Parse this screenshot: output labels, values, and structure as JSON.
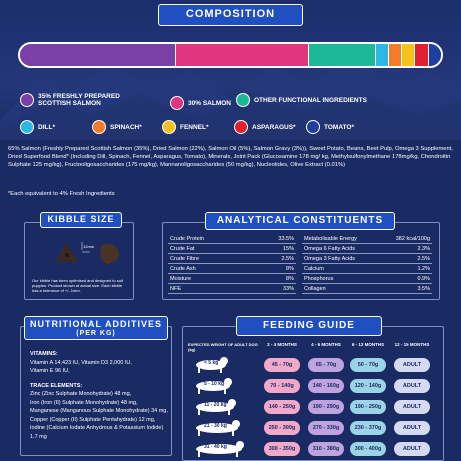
{
  "composition": {
    "title": "COMPOSITION",
    "bar": [
      {
        "color": "#7b3fa8",
        "share": 35
      },
      {
        "color": "#e0357f",
        "share": 30
      },
      {
        "color": "#1db89a",
        "share": 15
      },
      {
        "color": "#2bb8e6",
        "share": 3
      },
      {
        "color": "#f27c27",
        "share": 3
      },
      {
        "color": "#f5c21b",
        "share": 3
      },
      {
        "color": "#e02230",
        "share": 3
      },
      {
        "color": "#1f3fa0",
        "share": 3
      }
    ],
    "legend": [
      {
        "label": "35% FRESHLY PREPARED SCOTTISH SALMON",
        "color": "#7b3fa8"
      },
      {
        "label": "30% SALMON",
        "color": "#e0357f"
      },
      {
        "label": "OTHER FUNCTIONAL INGREDIENTS",
        "color": "#1db89a"
      },
      {
        "label": "DILL*",
        "color": "#2bb8e6"
      },
      {
        "label": "SPINACH*",
        "color": "#f27c27"
      },
      {
        "label": "FENNEL*",
        "color": "#f5c21b"
      },
      {
        "label": "ASPARAGUS*",
        "color": "#e02230"
      },
      {
        "label": "TOMATO*",
        "color": "#1f3fa0"
      }
    ],
    "ingredients": "65% Salmon (Freshly Prepared Scottish Salmon (35%), Dried Salmon (22%), Salmon Oil (5%), Salmon Gravy (3%)), Sweet Potato, Beans, Beet Pulp, Omega 3 Supplement, Dried Superfood Blend* (Including Dill, Spinach, Fennel, Asparagus, Tomato), Minerals, Joint Pack (Glucosamine 178 mg/ kg, Methylsulfonylmethane 178mg/kg, Chondroitin Sulphate 125 mg/kg), Fructooligosaccharides (175 mg/kg), Mannanoligosaccharides (50 mg/kg), Nucleotides, Olive Extract (0.01%)",
    "footnote": "*Each equivalent to 4% Fresh Ingredients"
  },
  "kibble": {
    "title": "KIBBLE SIZE",
    "note": "Our kibble has been optimised and designed to suit puppies. Product shown at actual size. Each kibble has a tolerance of +/- 1mm."
  },
  "analytical": {
    "title": "ANALYTICAL CONSTITUENTS",
    "left": [
      {
        "k": "Crude Protein",
        "v": "33.5%"
      },
      {
        "k": "Crude Fat",
        "v": "15%"
      },
      {
        "k": "Crude Fibre",
        "v": "2.5%"
      },
      {
        "k": "Crude Ash",
        "v": "8%"
      },
      {
        "k": "Moisture",
        "v": "8%"
      },
      {
        "k": "NFE",
        "v": "33%"
      }
    ],
    "right": [
      {
        "k": "Metabolisable Energy",
        "v": "382 kcal/100g"
      },
      {
        "k": "Omega 6 Fatty Acids",
        "v": "2.3%"
      },
      {
        "k": "Omega 3 Fatty Acids",
        "v": "2.5%"
      },
      {
        "k": "Calcium",
        "v": "1.2%"
      },
      {
        "k": "Phosphorus",
        "v": "0.9%"
      },
      {
        "k": "Collagen",
        "v": "3.5%"
      }
    ]
  },
  "additives": {
    "title": "NUTRITIONAL ADDITIVES",
    "subtitle": "(PER KG)",
    "vitamins_head": "VITAMINS:",
    "vitamins": [
      "Vitamin A 14,423 IU, Vitamin D3 2,000 IU,",
      "Vitamin E 96 IU,"
    ],
    "trace_head": "TRACE ELEMENTS:",
    "trace": [
      "Zinc (Zinc Sulphate Monohydrate) 48 mg,",
      "Iron (Iron (II) Sulphate Monohydrate) 48 mg,",
      "Manganese (Manganous Sulphate Monohydrate) 34 mg,",
      "Copper (Copper (II) Sulphate Pentahydrate) 12 mg,",
      "Iodine (Calcium Iodate Anhydrous & Potassium Iodide) 1.7 mg"
    ]
  },
  "feeding": {
    "title": "FEEDING GUIDE",
    "weight_head": "EXPECTED WEIGHT OF ADULT DOG (kg)",
    "columns": [
      "2 - 4 MONTHS",
      "4 - 6 MONTHS",
      "6 - 12 MONTHS",
      "12 - 15 MONTHS"
    ],
    "rows": [
      {
        "weight": "< 5 kg",
        "vals": [
          "45 - 70g",
          "65 - 70g",
          "50 - 70g",
          "ADULT"
        ]
      },
      {
        "weight": "5 - 10 kg",
        "vals": [
          "70 - 140g",
          "140 - 160g",
          "120 - 140g",
          "ADULT"
        ]
      },
      {
        "weight": "11 - 20 kg",
        "vals": [
          "140 - 250g",
          "190 - 290g",
          "190 - 250g",
          "ADULT"
        ]
      },
      {
        "weight": "21 - 30 kg",
        "vals": [
          "250 - 300g",
          "270 - 330g",
          "230 - 370g",
          "ADULT"
        ]
      },
      {
        "weight": "31 - 40 kg",
        "vals": [
          "300 - 350g",
          "310 - 380g",
          "300 - 400g",
          "ADULT"
        ]
      }
    ],
    "colors": [
      "#f2a8c8",
      "#bfa3de",
      "#9bd4e6",
      "#d4dbf0"
    ]
  }
}
